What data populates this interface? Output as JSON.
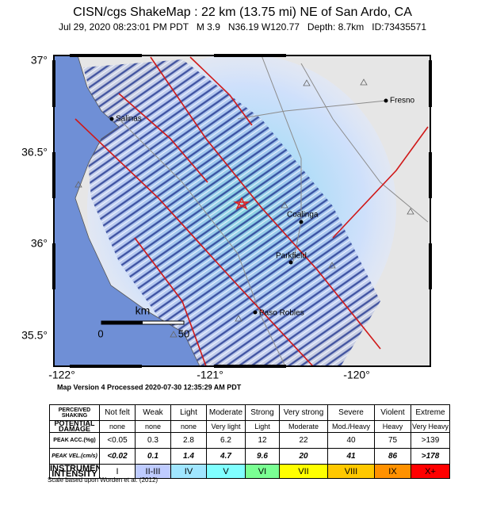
{
  "header": {
    "title": "CISN/cgs ShakeMap : 22 km (13.75 mi) NE of San Ardo, CA",
    "subtitle": "Jul 29, 2020 08:23:01 PM PDT   M 3.9   N36.19 W120.77   Depth: 8.7km   ID:73435571"
  },
  "map": {
    "lat_labels": [
      "37°",
      "36.5°",
      "36°",
      "35.5°"
    ],
    "lon_labels": [
      "-122°",
      "-121°",
      "-120°"
    ],
    "cities": [
      "Salinas",
      "Fresno",
      "Coalinga",
      "Parkfield",
      "Paso Robles"
    ],
    "scale_bar": {
      "unit": "km",
      "start": "0",
      "end": "50"
    }
  },
  "version_note": "Map Version 4 Processed 2020-07-30 12:35:29 AM PDT",
  "legend": {
    "rows": [
      {
        "label": "PERCEIVED SHAKING",
        "cells": [
          "Not felt",
          "Weak",
          "Light",
          "Moderate",
          "Strong",
          "Very strong",
          "Severe",
          "Violent",
          "Extreme"
        ]
      },
      {
        "label": "POTENTIAL DAMAGE",
        "cells": [
          "none",
          "none",
          "none",
          "Very light",
          "Light",
          "Moderate",
          "Mod./Heavy",
          "Heavy",
          "Very Heavy"
        ]
      },
      {
        "label": "PEAK ACC.(%g)",
        "cells": [
          "<0.05",
          0.3,
          2.8,
          6.2,
          12,
          22,
          40,
          75,
          ">139"
        ]
      },
      {
        "label": "PEAK VEL.(cm/s)",
        "cells": [
          "<0.02",
          0.1,
          1.4,
          4.7,
          9.6,
          20,
          41,
          86,
          ">178"
        ]
      },
      {
        "label": "INSTRUMENTAL INTENSITY",
        "cells": [
          "I",
          "II-III",
          "IV",
          "V",
          "VI",
          "VII",
          "VIII",
          "IX",
          "X+"
        ]
      }
    ],
    "footnote": "Scale based upon Worden et al. (2012)"
  }
}
